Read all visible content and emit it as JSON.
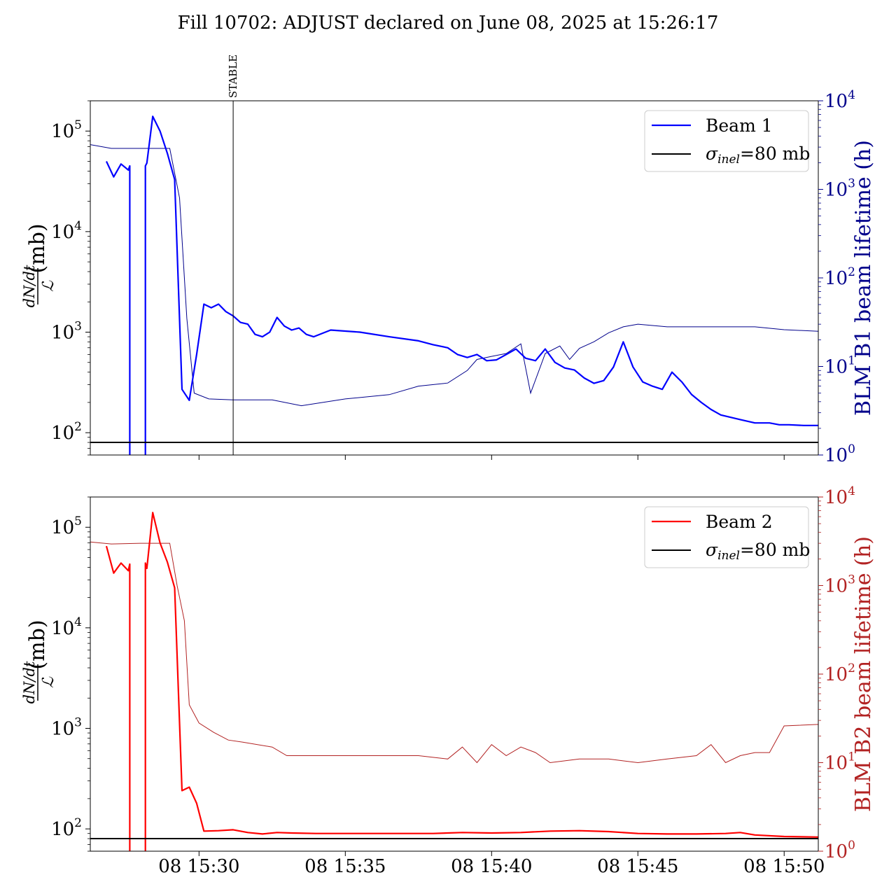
{
  "title": "Fill 10702: ADJUST declared on June 08, 2025 at 15:26:17",
  "colors": {
    "beam1": "#0000ff",
    "beam1_lifetime": "#00008b",
    "beam2": "#ff0000",
    "beam2_lifetime": "#b22222",
    "ref": "#000000"
  },
  "chart_data": [
    {
      "type": "line",
      "panel": "top",
      "xlabel": "",
      "y_left_scale": "log",
      "y_left_lim": [
        60,
        200000
      ],
      "y_right_label": "BLM B1 beam lifetime (h)",
      "y_right_scale": "log",
      "y_right_lim": [
        1,
        10000
      ],
      "x_range": [
        "15:26:17",
        "15:51:10"
      ],
      "x_ticks": [
        "08 15:30",
        "08 15:35",
        "08 15:40",
        "08 15:45",
        "08 15:50"
      ],
      "x_tick_minutes": [
        30,
        35,
        40,
        45,
        50
      ],
      "y_left_ticks": [
        100,
        1000,
        10000,
        100000
      ],
      "y_right_ticks": [
        1,
        10,
        100,
        1000,
        10000
      ],
      "legend_position": "upper right",
      "legend": [
        "Beam 1",
        "σinel=80 mb"
      ],
      "reference_line": {
        "name": "σinel=80 mb",
        "value": 80
      },
      "marker": {
        "label": "STABLE",
        "time": "15:31:10"
      },
      "series": [
        {
          "name": "Beam 1",
          "axis": "left",
          "x": [
            "15:26:50",
            "15:27:05",
            "15:27:20",
            "15:27:35",
            "15:27:38",
            "15:28:10",
            "15:28:13",
            "15:28:25",
            "15:28:40",
            "15:28:55",
            "15:29:10",
            "15:29:25",
            "15:29:40",
            "15:29:55",
            "15:30:10",
            "15:30:25",
            "15:30:40",
            "15:30:55",
            "15:31:10",
            "15:31:25",
            "15:31:40",
            "15:31:55",
            "15:32:10",
            "15:32:25",
            "15:32:40",
            "15:32:55",
            "15:33:10",
            "15:33:25",
            "15:33:40",
            "15:33:55",
            "15:34:30",
            "15:35:30",
            "15:36:30",
            "15:37:30",
            "15:38:00",
            "15:38:30",
            "15:38:50",
            "15:39:10",
            "15:39:30",
            "15:39:50",
            "15:40:10",
            "15:40:30",
            "15:40:50",
            "15:41:10",
            "15:41:30",
            "15:41:50",
            "15:42:10",
            "15:42:30",
            "15:42:50",
            "15:43:10",
            "15:43:30",
            "15:43:50",
            "15:44:10",
            "15:44:30",
            "15:44:50",
            "15:45:10",
            "15:45:30",
            "15:45:50",
            "15:46:10",
            "15:46:30",
            "15:46:50",
            "15:47:10",
            "15:47:30",
            "15:47:50",
            "15:48:30",
            "15:49:00",
            "15:49:30",
            "15:49:50",
            "15:50:10",
            "15:50:40",
            "15:51:10"
          ],
          "y": [
            50000,
            35000,
            47000,
            41000,
            45000,
            45000,
            48000,
            140000,
            100000,
            60000,
            33000,
            270,
            210,
            600,
            1900,
            1750,
            1900,
            1600,
            1450,
            1250,
            1200,
            950,
            900,
            1000,
            1400,
            1150,
            1050,
            1100,
            950,
            900,
            1050,
            1000,
            900,
            820,
            750,
            700,
            600,
            560,
            600,
            520,
            530,
            600,
            680,
            550,
            520,
            680,
            500,
            440,
            420,
            350,
            310,
            330,
            450,
            800,
            450,
            320,
            290,
            270,
            400,
            320,
            240,
            200,
            170,
            150,
            135,
            125,
            125,
            120,
            120,
            118,
            118
          ]
        },
        {
          "name": "BLM B1 beam lifetime (h)",
          "axis": "right",
          "x": [
            "15:26:17",
            "15:27:00",
            "15:28:00",
            "15:29:00",
            "15:29:20",
            "15:29:35",
            "15:29:50",
            "15:30:20",
            "15:31:10",
            "15:32:30",
            "15:33:30",
            "15:35:00",
            "15:36:30",
            "15:37:30",
            "15:38:30",
            "15:39:10",
            "15:39:30",
            "15:40:00",
            "15:40:30",
            "15:41:00",
            "15:41:20",
            "15:41:50",
            "15:42:20",
            "15:42:40",
            "15:43:00",
            "15:43:30",
            "15:44:00",
            "15:44:30",
            "15:45:00",
            "15:46:00",
            "15:47:00",
            "15:48:00",
            "15:49:00",
            "15:50:00",
            "15:51:10"
          ],
          "y": [
            3200,
            2900,
            2900,
            2900,
            800,
            35,
            5.0,
            4.3,
            4.2,
            4.2,
            3.6,
            4.3,
            4.8,
            6.0,
            6.5,
            9.0,
            12,
            13,
            14,
            18,
            5.0,
            14,
            17,
            12,
            16,
            19,
            24,
            28,
            30,
            28,
            28,
            28,
            28,
            26,
            25
          ]
        }
      ]
    },
    {
      "type": "line",
      "panel": "bottom",
      "xlabel": "",
      "y_left_scale": "log",
      "y_left_lim": [
        60,
        200000
      ],
      "y_right_label": "BLM B2 beam lifetime (h)",
      "y_right_scale": "log",
      "y_right_lim": [
        1,
        10000
      ],
      "x_range": [
        "15:26:17",
        "15:51:10"
      ],
      "x_ticks": [
        "08 15:30",
        "08 15:35",
        "08 15:40",
        "08 15:45",
        "08 15:50"
      ],
      "x_tick_minutes": [
        30,
        35,
        40,
        45,
        50
      ],
      "y_left_ticks": [
        100,
        1000,
        10000,
        100000
      ],
      "y_right_ticks": [
        1,
        10,
        100,
        1000,
        10000
      ],
      "legend_position": "upper right",
      "legend": [
        "Beam 2",
        "σinel=80 mb"
      ],
      "reference_line": {
        "name": "σinel=80 mb",
        "value": 80
      },
      "series": [
        {
          "name": "Beam 2",
          "axis": "left",
          "x": [
            "15:26:50",
            "15:27:05",
            "15:27:20",
            "15:27:35",
            "15:27:38",
            "15:28:10",
            "15:28:13",
            "15:28:25",
            "15:28:40",
            "15:28:55",
            "15:29:10",
            "15:29:25",
            "15:29:40",
            "15:29:55",
            "15:30:10",
            "15:30:40",
            "15:31:10",
            "15:31:40",
            "15:32:10",
            "15:32:40",
            "15:33:10",
            "15:34:00",
            "15:35:00",
            "15:36:00",
            "15:37:00",
            "15:38:00",
            "15:39:00",
            "15:40:00",
            "15:41:00",
            "15:42:00",
            "15:43:00",
            "15:44:00",
            "15:45:00",
            "15:46:00",
            "15:47:00",
            "15:48:00",
            "15:48:30",
            "15:49:00",
            "15:50:00",
            "15:51:10"
          ],
          "y": [
            65000,
            35000,
            44000,
            37000,
            43000,
            44000,
            39000,
            140000,
            70000,
            45000,
            25000,
            240,
            260,
            180,
            95,
            96,
            98,
            92,
            89,
            92,
            91,
            90,
            90,
            90,
            90,
            90,
            92,
            91,
            92,
            95,
            96,
            94,
            90,
            89,
            89,
            90,
            92,
            87,
            84,
            83
          ]
        },
        {
          "name": "BLM B2 beam lifetime (h)",
          "axis": "right",
          "x": [
            "15:26:17",
            "15:27:00",
            "15:28:00",
            "15:29:00",
            "15:29:15",
            "15:29:30",
            "15:29:40",
            "15:30:00",
            "15:30:30",
            "15:31:00",
            "15:31:30",
            "15:32:30",
            "15:33:00",
            "15:33:30",
            "15:35:00",
            "15:36:00",
            "15:37:30",
            "15:38:30",
            "15:39:00",
            "15:39:30",
            "15:40:00",
            "15:40:30",
            "15:41:00",
            "15:41:30",
            "15:42:00",
            "15:43:00",
            "15:44:00",
            "15:45:00",
            "15:46:00",
            "15:47:00",
            "15:47:30",
            "15:48:00",
            "15:48:30",
            "15:49:00",
            "15:49:30",
            "15:50:00",
            "15:51:10"
          ],
          "y": [
            3100,
            2950,
            3000,
            3000,
            1000,
            400,
            45,
            28,
            22,
            18,
            17,
            15,
            12,
            12,
            12,
            12,
            12,
            11,
            15,
            10,
            16,
            12,
            15,
            13,
            10,
            11,
            11,
            10,
            11,
            12,
            16,
            10,
            12,
            13,
            13,
            26,
            27
          ]
        }
      ]
    }
  ]
}
